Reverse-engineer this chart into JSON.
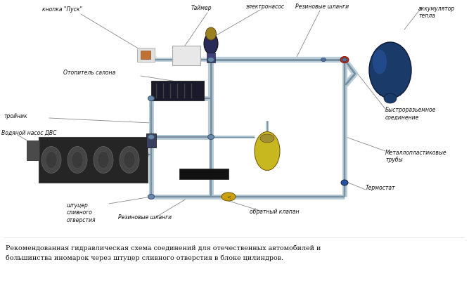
{
  "bg_color": "#ffffff",
  "caption_line1": "Рекомендованная гидравлическая схема соединений для отечественных автомобилей и",
  "caption_line2": "большинства иномарок через штуцер сливного отверстия в блоке цилиндров.",
  "labels": {
    "knopka": "кнопка \"Пуск\"",
    "tajmer": "Таймер",
    "elektronasos": "электронасос",
    "rezinovye_shlange_top": "Резиновые шланги",
    "akkumulator": "аккумулятор\nтепла",
    "otopitel": "Отопитель салона",
    "trojnik": "тройник",
    "vodyanoj_nasos": "Водяной насос ДВС",
    "bystroraz": "Быстроразьемное\nсоединение",
    "metalloplast": "Металлопластиковые\nтрубы",
    "shtutser": "штуцер\nсливного\nотверстия",
    "rezinovye_shlange_bot": "Резиновые шланги",
    "obratnyj_klapan": "обратный клапан",
    "termostat": "Термостат"
  },
  "pipe_color": "#b8ccd8",
  "pipe_dark": "#7890a0",
  "pipe_lw": 5,
  "engine_color": "#252525",
  "accumulator_color": "#1a3a70",
  "pump_body_color": "#303060",
  "pump_top_color": "#9a8020",
  "yellow_tank_color": "#c8b820",
  "heater_color": "#1a1a2a",
  "check_valve_color": "#c8a010",
  "connector_color": "#c03010",
  "timer_color": "#e8e8e8",
  "junction_color": "#6080a0"
}
